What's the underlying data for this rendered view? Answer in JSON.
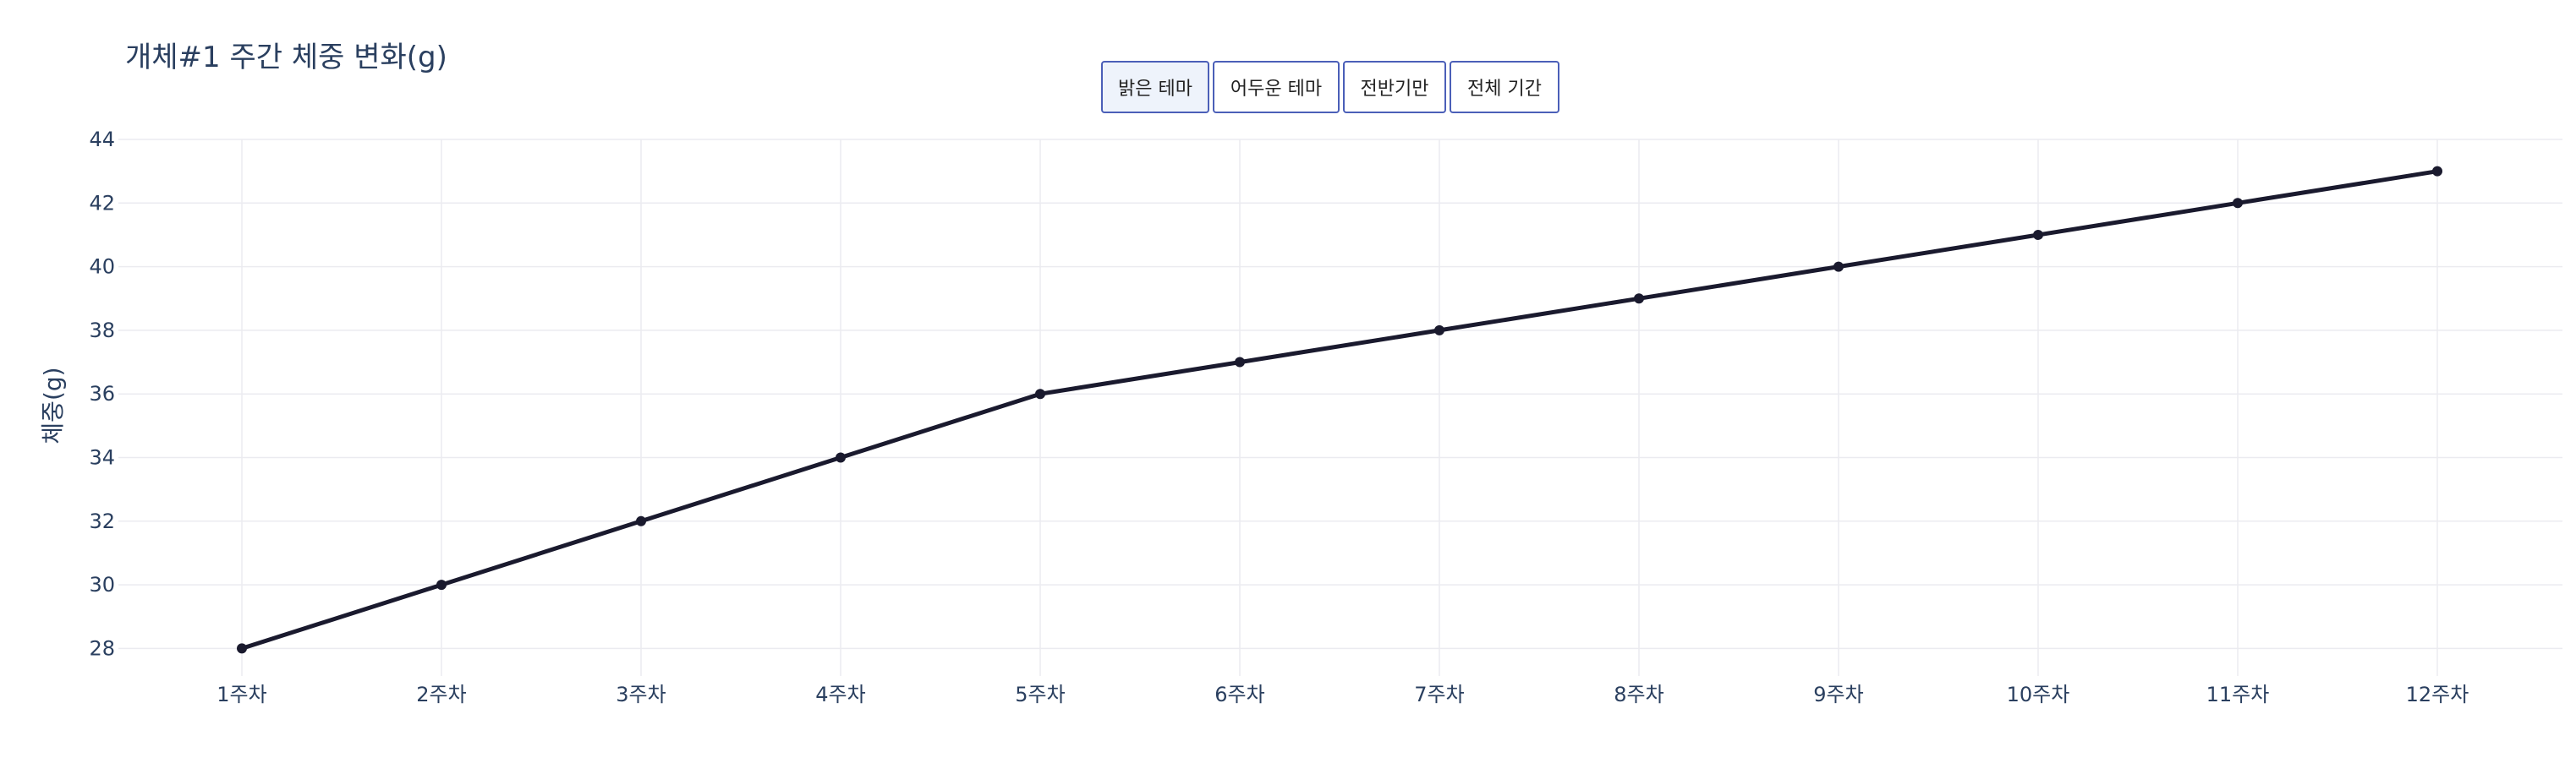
{
  "title": "개체#1 주간 체중 변화(g)",
  "buttons": [
    {
      "label": "밝은 테마",
      "active": true
    },
    {
      "label": "어두운 테마",
      "active": false
    },
    {
      "label": "전반기만",
      "active": false
    },
    {
      "label": "전체 기간",
      "active": false
    }
  ],
  "colors": {
    "line": "#1a1a2e",
    "grid": "#ebebf0",
    "text": "#2a3f5f"
  },
  "chart_data": {
    "type": "line",
    "title": "개체#1 주간 체중 변화(g)",
    "xlabel": "",
    "ylabel": "체중(g)",
    "categories": [
      "1주차",
      "2주차",
      "3주차",
      "4주차",
      "5주차",
      "6주차",
      "7주차",
      "8주차",
      "9주차",
      "10주차",
      "11주차",
      "12주차"
    ],
    "series": [
      {
        "values": [
          28,
          30,
          32,
          34,
          36,
          37,
          38,
          39,
          40,
          41,
          42,
          43
        ]
      }
    ],
    "ylim": [
      27.4,
      44
    ],
    "yticks": [
      28,
      30,
      32,
      34,
      36,
      38,
      40,
      42,
      44
    ],
    "grid": true,
    "markers": true
  }
}
